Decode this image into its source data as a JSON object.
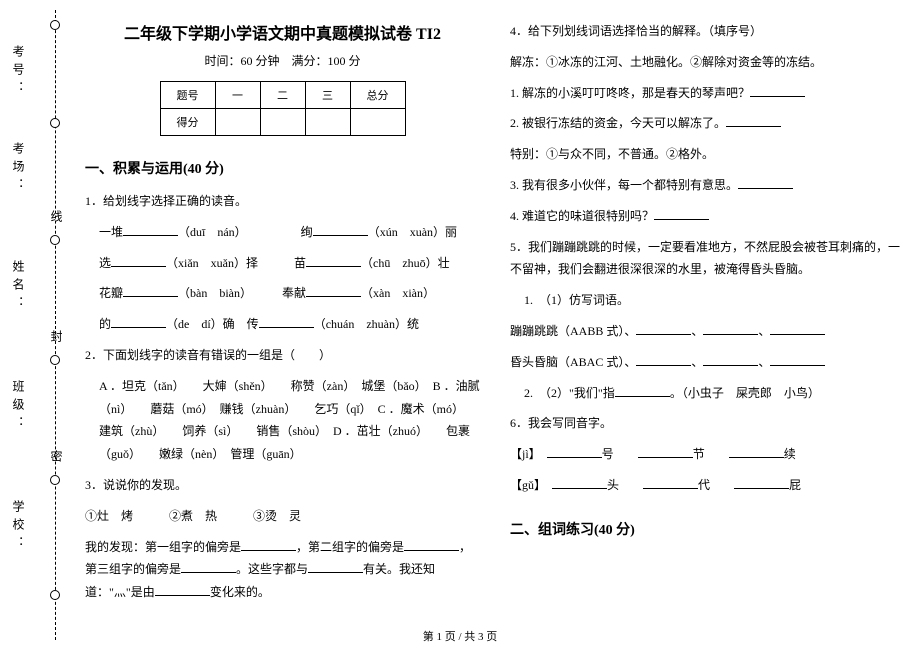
{
  "sidebar": {
    "labels": [
      "考号：",
      "考场：",
      "姓名：",
      "班级：",
      "学校："
    ],
    "seals": [
      "线",
      "封",
      "密"
    ]
  },
  "header": {
    "title": "二年级下学期小学语文期中真题模拟试卷 TI2",
    "sub": "时间：60 分钟　满分：100 分"
  },
  "score": {
    "r1c1": "题号",
    "r1c2": "一",
    "r1c3": "二",
    "r1c4": "三",
    "r1c5": "总分",
    "r2c1": "得分"
  },
  "s1": {
    "title": "一、积累与运用(40 分)",
    "q1": "1．给划线字选择正确的读音。",
    "q1_body": "一堆______（duī　nán）　　　　　绚______（xún　xuàn）丽",
    "q1_body2": "选______（xiǎn　xuǎn）择　　　苗______（chū　zhuō）壮",
    "q1_body3": "花瓣______（bàn　biàn）　　　奉献______（xàn　xiàn）",
    "q1_body4": "的______（de　dí）确　传______（chuán　zhuàn）统",
    "q2": "2．下面划线字的读音有错误的一组是（　　）",
    "q2a": "A ．坦克（tǎn）　　大婶（shěn）　　称赞（zàn）　城堡（bǎo）　B ．油腻（nì）　　蘑菇（mó）　赚钱（zhuàn）　　乞巧（qǐ）　C ．魔术（mó）　建筑（zhù）　　饲养（sì）　　销售（shòu）　D ．茁壮（zhuó）　　包裹（guǒ）　　嫩绿（nèn）　管理（guān）",
    "q3": "3．说说你的发现。",
    "q3_list": "①灶　烤　　　②煮　热　　　③烫　灵",
    "q3_txt": "我的发现：第一组字的偏旁是______，第二组字的偏旁是______，第三组字的偏旁是______。这些字都与______有关。我还知道：\"灬\"是由______变化来的。",
    "q4": "4．给下列划线词语选择恰当的解释。（填序号）",
    "q4a": "解冻：①冰冻的江河、土地融化。②解除对资金等的冻结。",
    "q4_1": "1. 解冻的小溪叮叮咚咚，那是春天的琴声吧？______",
    "q4_2": "2. 被银行冻结的资金，今天可以解冻了。______",
    "q4b": "特别：①与众不同，不普通。②格外。",
    "q4_3": "3. 我有很多小伙伴，每一个都特别有意思。______",
    "q4_4": "4. 难道它的味道很特别吗？______",
    "q5": "5．我们蹦蹦跳跳的时候，一定要看准地方，不然屁股会被苍耳刺痛的，一不留神，我们会翻进很深很深的水里，被淹得昏头昏脑。",
    "q5_1": "1.　（1）仿写词语。",
    "q5_1a": "蹦蹦跳跳（AABB 式）、______、______、______",
    "q5_1b": "昏头昏脑（ABAC 式）、______、______、______",
    "q5_2": "2.　（2）\"我们\"指______。（小虫子　屎壳郎　小鸟）",
    "q6": "6．我会写同音字。",
    "q6_1": "【jì】　______号　　______节　　______续",
    "q6_2": "【gǔ】　______头　　______代　　______屁"
  },
  "s2": {
    "title": "二、组词练习(40 分)"
  },
  "footer": "第 1 页  /  共 3 页"
}
